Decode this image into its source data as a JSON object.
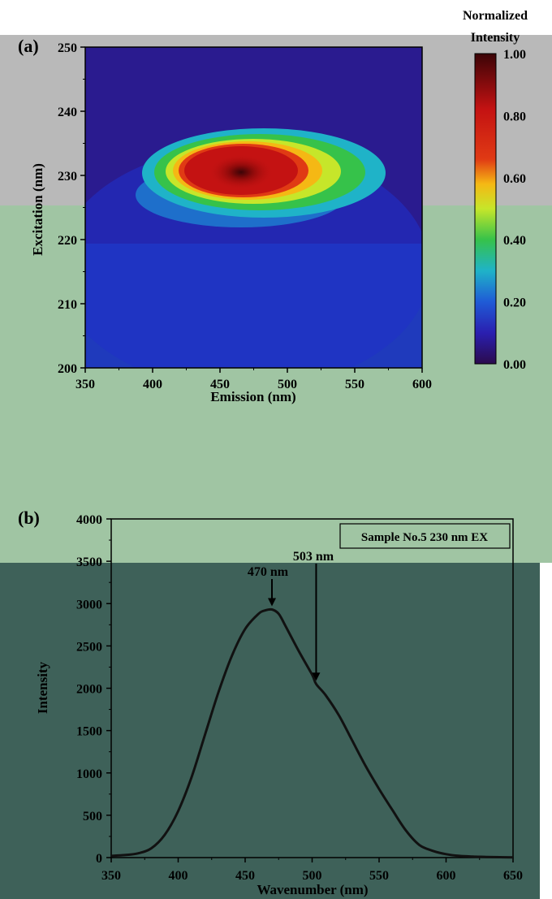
{
  "panel_a": {
    "label": "(a)",
    "colorbar_title_line1": "Normalized",
    "colorbar_title_line2": "Intensity",
    "colorbar_ticks": [
      "1.00",
      "0.80",
      "0.60",
      "0.40",
      "0.20",
      "0.00"
    ]
  },
  "panel_b": {
    "label": "(b)",
    "legend_text": "Sample No.5 230 nm EX",
    "peak1_label": "470 nm",
    "peak2_label": "503 nm"
  },
  "colors": {
    "curve": "#111111",
    "band_gray": "#b9b9b9",
    "band_light_green": "#a0c5a3",
    "band_dark_green": "#3e6159"
  },
  "chart_data": [
    {
      "type": "heatmap",
      "title": "",
      "xlabel": "Emission (nm)",
      "ylabel": "Excitation (nm)",
      "xlim": [
        350,
        600
      ],
      "ylim": [
        200,
        250
      ],
      "xticks": [
        "350",
        "400",
        "450",
        "500",
        "550",
        "600"
      ],
      "yticks": [
        "200",
        "210",
        "220",
        "230",
        "240",
        "250"
      ],
      "colorbar_label": "Normalized Intensity",
      "colorbar_range": [
        0.0,
        1.0
      ],
      "peak": {
        "x": 467,
        "y": 230,
        "value": 1.0
      }
    },
    {
      "type": "line",
      "title": "",
      "xlabel": "Wavenumber (nm)",
      "ylabel": "Intensity",
      "xlim": [
        350,
        650
      ],
      "ylim": [
        0,
        4000
      ],
      "xticks": [
        "350",
        "400",
        "450",
        "500",
        "550",
        "600",
        "650"
      ],
      "yticks": [
        "0",
        "500",
        "1000",
        "1500",
        "2000",
        "2500",
        "3000",
        "3500",
        "4000"
      ],
      "legend": [
        "Sample No.5 230 nm EX"
      ],
      "series": [
        {
          "name": "Sample No.5 230 nm EX",
          "x": [
            350,
            360,
            370,
            380,
            390,
            400,
            410,
            420,
            430,
            440,
            450,
            460,
            465,
            470,
            475,
            480,
            490,
            500,
            503,
            510,
            520,
            530,
            540,
            550,
            560,
            570,
            580,
            590,
            600,
            610,
            620,
            630,
            640,
            650
          ],
          "y": [
            20,
            30,
            50,
            110,
            270,
            550,
            950,
            1450,
            1950,
            2380,
            2700,
            2880,
            2920,
            2930,
            2880,
            2740,
            2440,
            2160,
            2050,
            1920,
            1680,
            1380,
            1080,
            810,
            560,
            320,
            150,
            80,
            40,
            20,
            12,
            8,
            5,
            3
          ]
        }
      ],
      "annotations": [
        {
          "text": "470 nm",
          "x": 470,
          "y": 2930
        },
        {
          "text": "503 nm",
          "x": 503,
          "y": 2050
        }
      ]
    }
  ]
}
